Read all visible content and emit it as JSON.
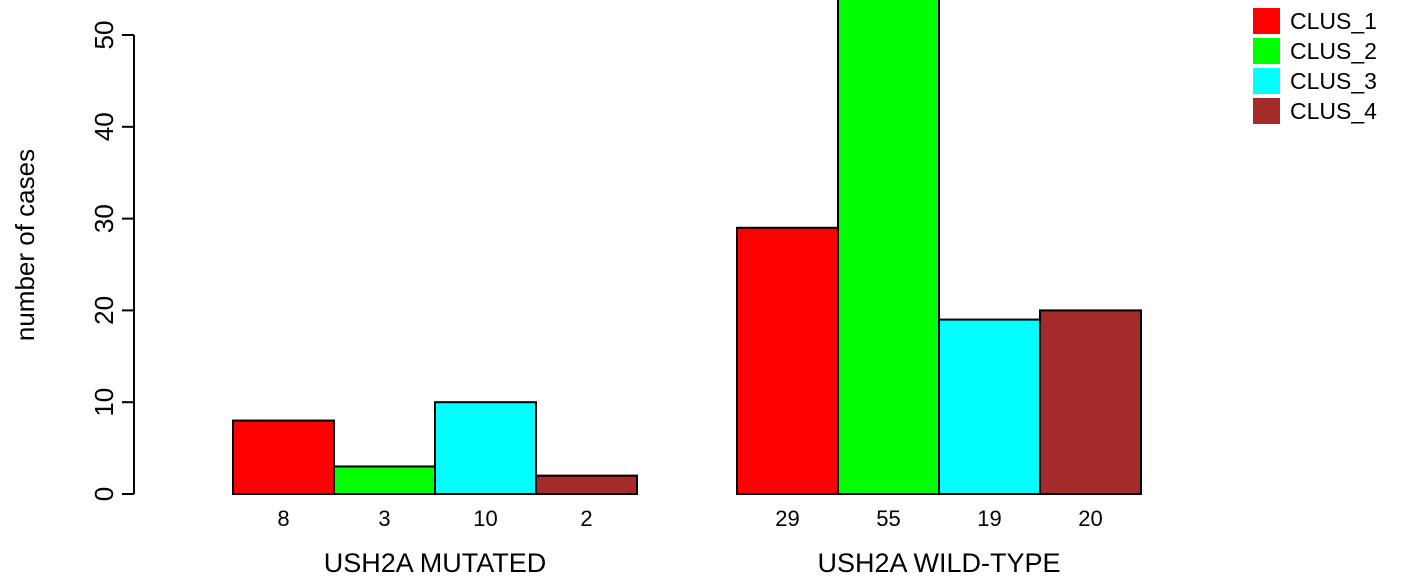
{
  "chart_data": {
    "type": "bar",
    "ylabel": "number of cases",
    "ylim": [
      0,
      55
    ],
    "yticks": [
      0,
      10,
      20,
      30,
      40,
      50
    ],
    "grid": false,
    "legend_position": "top-right",
    "groups": [
      {
        "label": "USH2A MUTATED",
        "values": [
          8,
          3,
          10,
          2
        ],
        "value_labels": [
          "8",
          "3",
          "10",
          "2"
        ]
      },
      {
        "label": "USH2A WILD-TYPE",
        "values": [
          29,
          55,
          19,
          20
        ],
        "value_labels": [
          "29",
          "55",
          "19",
          "20"
        ]
      }
    ],
    "series": [
      {
        "name": "CLUS_1",
        "color": "#ff0000"
      },
      {
        "name": "CLUS_2",
        "color": "#00ff00"
      },
      {
        "name": "CLUS_3",
        "color": "#00ffff"
      },
      {
        "name": "CLUS_4",
        "color": "#a52a2a"
      }
    ]
  }
}
